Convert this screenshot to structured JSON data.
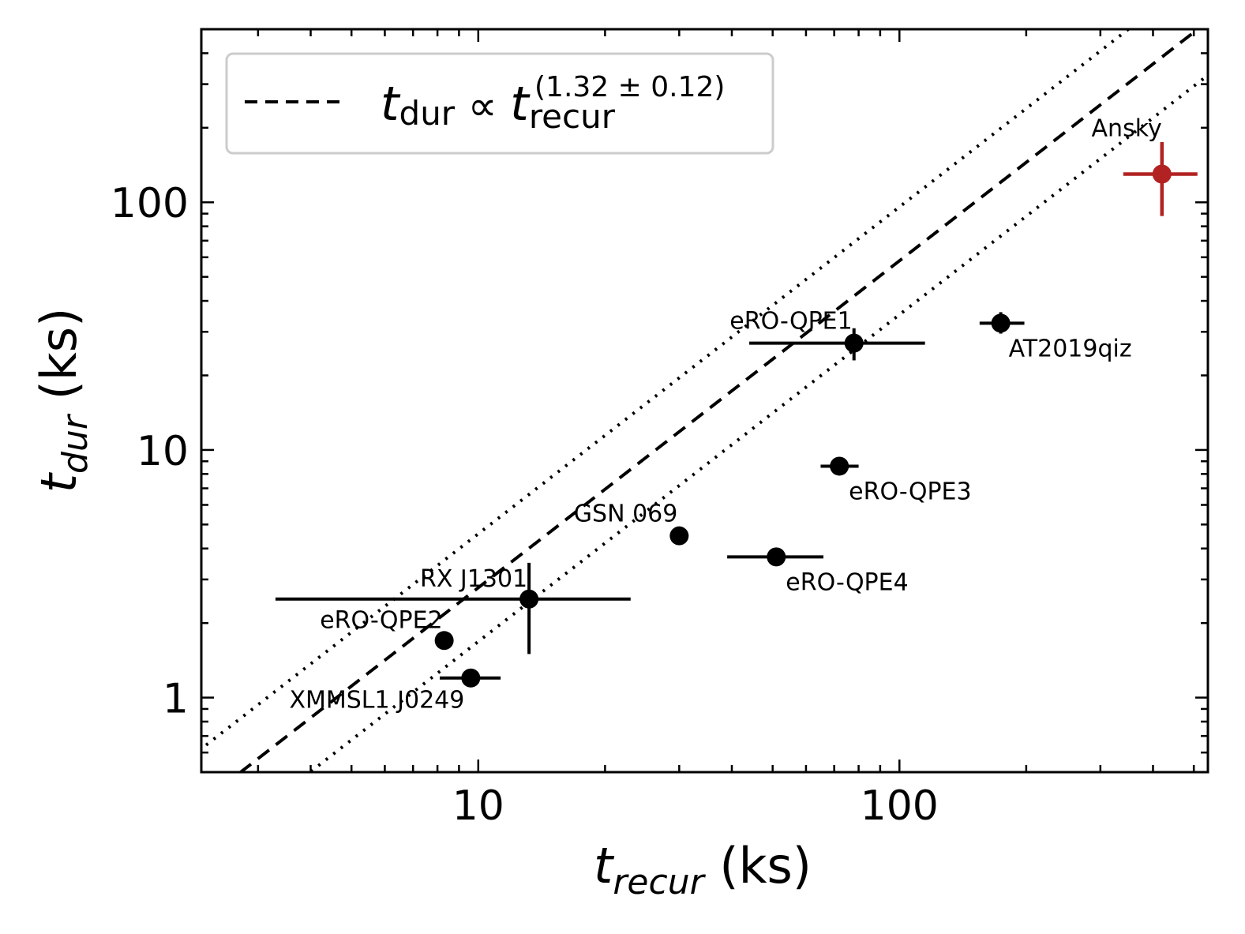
{
  "chart_data": {
    "type": "scatter",
    "xscale": "log",
    "yscale": "log",
    "xlim": [
      2.2,
      540
    ],
    "ylim": [
      0.5,
      500
    ],
    "xticks": [
      10,
      100
    ],
    "xtick_labels": [
      "10",
      "100"
    ],
    "yticks": [
      1,
      10,
      100
    ],
    "ytick_labels": [
      "1",
      "10",
      "100"
    ],
    "xlabel": {
      "main": "t",
      "sub": "recur",
      "units": " (ks)"
    },
    "ylabel": {
      "main": "t",
      "sub": "dur",
      "units": " (ks)"
    },
    "legend": {
      "position": "top-left",
      "main": "t",
      "sub": "dur",
      "prop": " ∝ ",
      "main2": "t",
      "sub2": "recur",
      "exponent": "(1.32 ± 0.12)"
    },
    "fit": {
      "exponent": 1.32,
      "norm": 0.133,
      "scatter_factor": 1.65
    },
    "colors": {
      "data": "#000000",
      "ansky": "#b22222"
    },
    "points": [
      {
        "name": "eRO-QPE1",
        "x": 78,
        "xerr": [
          44,
          115
        ],
        "y": 27,
        "yerr": [
          23,
          31
        ],
        "color": "#000000"
      },
      {
        "name": "AT2019qiz",
        "x": 174,
        "xerr": [
          155,
          198
        ],
        "y": 32.5,
        "yerr": [
          29.5,
          36
        ],
        "color": "#000000"
      },
      {
        "name": "eRO-QPE3",
        "x": 72,
        "xerr": [
          65,
          80
        ],
        "y": 8.6,
        "yerr": null,
        "color": "#000000"
      },
      {
        "name": "GSN 069",
        "x": 30,
        "xerr": null,
        "y": 4.5,
        "yerr": null,
        "color": "#000000"
      },
      {
        "name": "eRO-QPE4",
        "x": 51,
        "xerr": [
          39,
          66
        ],
        "y": 3.7,
        "yerr": null,
        "color": "#000000"
      },
      {
        "name": "RX J1301",
        "x": 13.2,
        "xerr": [
          3.3,
          23
        ],
        "y": 2.5,
        "yerr": [
          1.5,
          3.5
        ],
        "color": "#000000"
      },
      {
        "name": "eRO-QPE2",
        "x": 8.3,
        "xerr": null,
        "y": 1.7,
        "yerr": null,
        "color": "#000000"
      },
      {
        "name": "XMMSL1 J0249",
        "x": 9.6,
        "xerr": [
          8.1,
          11.3
        ],
        "y": 1.2,
        "yerr": null,
        "color": "#000000"
      },
      {
        "name": "Ansky",
        "x": 420,
        "xerr": [
          340,
          510
        ],
        "y": 130,
        "yerr": [
          88,
          175
        ],
        "color": "#b22222"
      }
    ]
  }
}
